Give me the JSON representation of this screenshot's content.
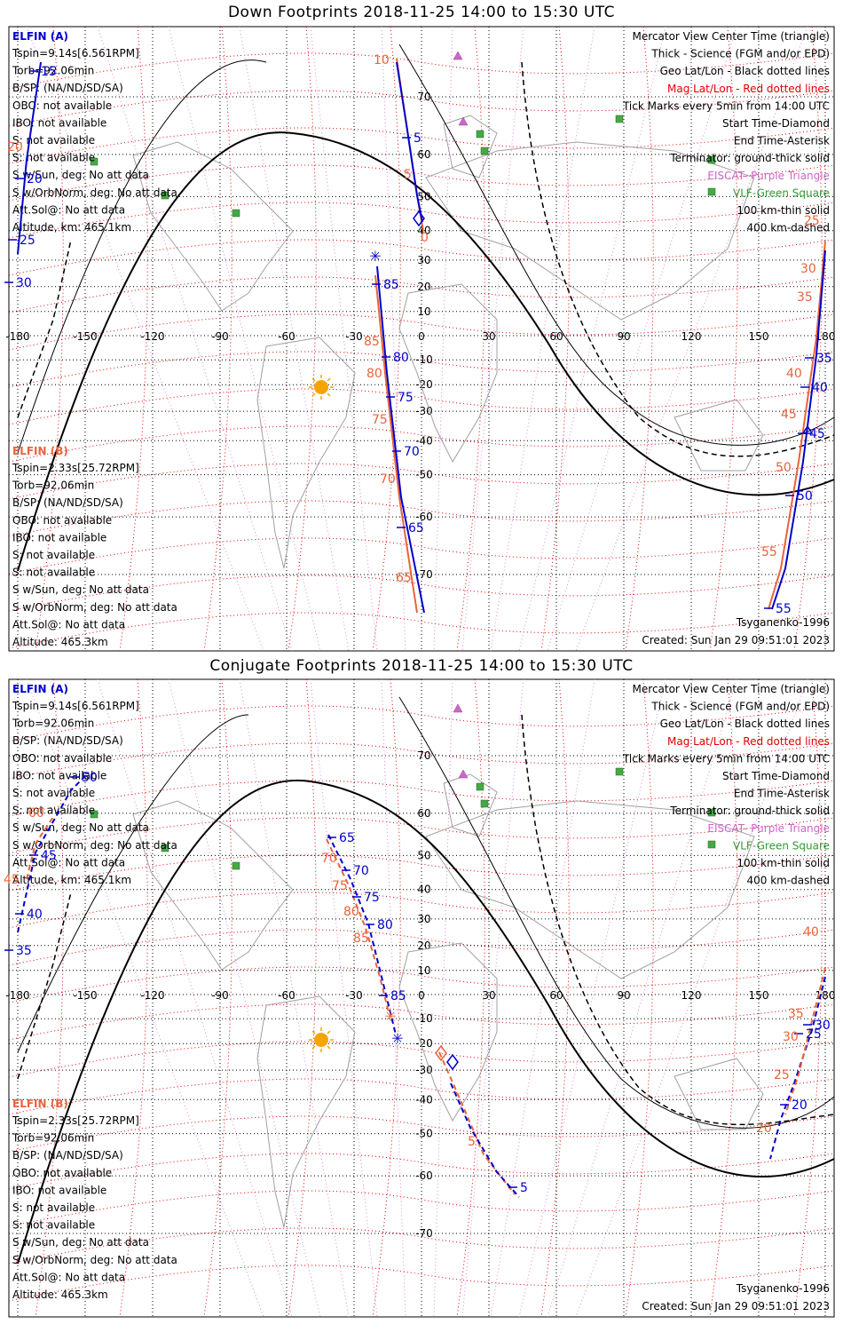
{
  "colors": {
    "elfin_a": "#0000cc",
    "elfin_b": "#e8643c",
    "mag_grid": "#e00000",
    "geo_grid": "#000000",
    "eiscat": "#cc66cc",
    "vlf": "#339933",
    "coast": "#a0a0a0"
  },
  "panels": [
    {
      "id": "down",
      "title": "Down Footprints 2018-11-25 14:00 to 15:30 UTC",
      "left_info_a": {
        "name": "ELFIN (A)",
        "lines": [
          "Tspin=9.14s[6.561RPM]",
          "Torb=92.06min",
          "B/SP: (NA/ND/SD/SA)",
          "OBO: not available",
          "IBO: not available",
          "S: not available",
          "S: not available",
          "S w/Sun, deg: No att data",
          "S w/OrbNorm, deg: No att data",
          "Att.Sol@: No att data",
          "Altitude, km: 465.1km"
        ]
      },
      "left_info_b": {
        "name": "ELFIN (B)",
        "lines": [
          "Tspin=2.33s[25.72RPM]",
          "Torb=92.06min",
          "B/SP: (NA/ND/SD/SA)",
          "OBO: not available",
          "IBO: not available",
          "S: not available",
          "S: not available",
          "S w/Sun, deg: No att data",
          "S w/OrbNorm, deg: No att data",
          "Att.Sol@: No att data",
          "Altitude: 465.3km"
        ]
      },
      "legend": [
        {
          "text": "Mercator View Center Time (triangle)",
          "color": "#000000"
        },
        {
          "text": "Thick - Science (FGM and/or EPD)",
          "color": "#000000"
        },
        {
          "text": "Geo Lat/Lon - Black dotted lines",
          "color": "#000000"
        },
        {
          "text": "Mag Lat/Lon - Red dotted lines",
          "color": "#e00000"
        },
        {
          "text": "Tick Marks every 5min from 14:00 UTC",
          "color": "#000000"
        },
        {
          "text": "Start Time-Diamond",
          "color": "#000000"
        },
        {
          "text": "End Time-Asterisk",
          "color": "#000000"
        },
        {
          "text": "Terminator: ground-thick solid",
          "color": "#000000"
        },
        {
          "text": "EISCAT- Purple Triangle",
          "color": "#cc66cc"
        },
        {
          "text": "VLF-Green Square",
          "color": "#339933"
        },
        {
          "text": "100 km-thin solid",
          "color": "#000000"
        },
        {
          "text": "400 km-dashed",
          "color": "#000000"
        }
      ],
      "model": "Tsyganenko-1996",
      "created": "Created: Sun Jan 29 09:51:01 2023"
    },
    {
      "id": "conjugate",
      "title": "Conjugate Footprints 2018-11-25 14:00 to 15:30 UTC",
      "left_info_a": {
        "name": "ELFIN (A)",
        "lines": [
          "Tspin=9.14s[6.561RPM]",
          "Torb=92.06min",
          "B/SP: (NA/ND/SD/SA)",
          "OBO: not available",
          "IBO: not available",
          "S: not available",
          "S: not available",
          "S w/Sun, deg: No att data",
          "S w/OrbNorm, deg: No att data",
          "Att.Sol@: No att data",
          "Altitude, km: 465.1km"
        ]
      },
      "left_info_b": {
        "name": "ELFIN (B)",
        "lines": [
          "Tspin=2.33s[25.72RPM]",
          "Torb=92.06min",
          "B/SP: (NA/ND/SD/SA)",
          "OBO: not available",
          "IBO: not available",
          "S: not available",
          "S: not available",
          "S w/Sun, deg: No att data",
          "S w/OrbNorm, deg: No att data",
          "Att.Sol@: No att data",
          "Altitude: 465.3km"
        ]
      },
      "legend": [
        {
          "text": "Mercator View Center Time (triangle)",
          "color": "#000000"
        },
        {
          "text": "Thick - Science (FGM and/or EPD)",
          "color": "#000000"
        },
        {
          "text": "Geo Lat/Lon - Black dotted lines",
          "color": "#000000"
        },
        {
          "text": "Mag Lat/Lon - Red dotted lines",
          "color": "#e00000"
        },
        {
          "text": "Tick Marks every 5min from 14:00 UTC",
          "color": "#000000"
        },
        {
          "text": "Start Time-Diamond",
          "color": "#000000"
        },
        {
          "text": "End Time-Asterisk",
          "color": "#000000"
        },
        {
          "text": "Terminator: ground-thick solid",
          "color": "#000000"
        },
        {
          "text": "EISCAT- Purple Triangle",
          "color": "#cc66cc"
        },
        {
          "text": "VLF-Green Square",
          "color": "#339933"
        },
        {
          "text": "100 km-thin solid",
          "color": "#000000"
        },
        {
          "text": "400 km-dashed",
          "color": "#000000"
        }
      ],
      "model": "Tsyganenko-1996",
      "created": "Created: Sun Jan 29 09:51:01 2023"
    }
  ],
  "map": {
    "lon_ticks": [
      "-180",
      "-150",
      "-120",
      "-90",
      "-60",
      "-30",
      "0",
      "30",
      "60",
      "90",
      "120",
      "150",
      "180"
    ],
    "lat_ticks": [
      "70",
      "60",
      "50",
      "40",
      "30",
      "20",
      "10",
      "-10",
      "-20",
      "-30",
      "-40",
      "-50",
      "-60",
      "-70"
    ]
  },
  "down_tracks": {
    "a_labels": [
      "15",
      "20",
      "25",
      "30",
      "5",
      "35",
      "40",
      "45",
      "50",
      "55",
      "85",
      "80",
      "75",
      "70",
      "65"
    ],
    "b_labels": [
      "10",
      "20",
      "5",
      "0",
      "85",
      "80",
      "75",
      "70",
      "65",
      "25",
      "30",
      "35",
      "40",
      "45",
      "50",
      "55"
    ]
  },
  "conj_tracks": {
    "a_labels": [
      "50",
      "45",
      "40",
      "35",
      "65",
      "70",
      "75",
      "80",
      "85",
      "5",
      "30",
      "25",
      "20"
    ],
    "b_labels": [
      "60",
      "45",
      "70",
      "75",
      "80",
      "85",
      "5",
      "40",
      "35",
      "30",
      "25",
      "20"
    ]
  }
}
